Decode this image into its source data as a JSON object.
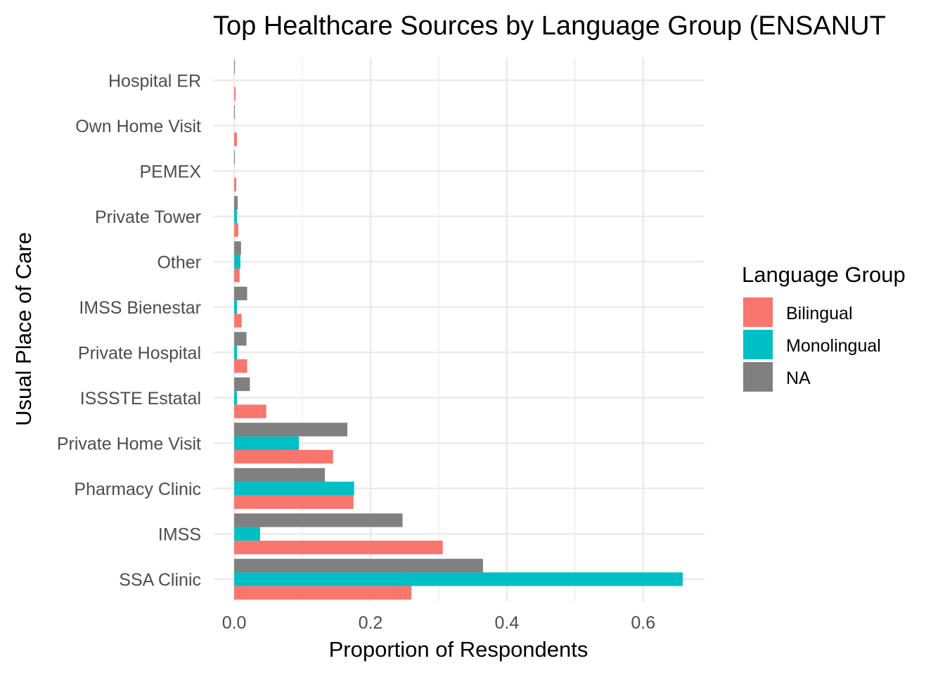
{
  "chart_data": {
    "type": "bar",
    "orientation": "horizontal",
    "title": "Top Healthcare Sources by Language Group (ENSANUT",
    "xlabel": "Proportion of Respondents",
    "ylabel": "Usual Place of Care",
    "xlim": [
      -0.03,
      0.69
    ],
    "xticks": [
      0.0,
      0.2,
      0.4,
      0.6
    ],
    "xtick_labels": [
      "0.0",
      "0.2",
      "0.4",
      "0.6"
    ],
    "grid": true,
    "legend": {
      "title": "Language Group",
      "position": "right"
    },
    "categories": [
      "Hospital ER",
      "Own Home Visit",
      "PEMEX",
      "Private Tower",
      "Other",
      "IMSS Bienestar",
      "Private Hospital",
      "ISSSTE Estatal",
      "Private Home Visit",
      "Pharmacy Clinic",
      "IMSS",
      "SSA Clinic"
    ],
    "series": [
      {
        "name": "Bilingual",
        "color": "#F8766D",
        "values": [
          0.002,
          0.004,
          0.003,
          0.006,
          0.008,
          0.011,
          0.019,
          0.047,
          0.145,
          0.175,
          0.306,
          0.26
        ]
      },
      {
        "name": "Monolingual",
        "color": "#00BFC4",
        "values": [
          0,
          0,
          0,
          0.004,
          0.009,
          0.004,
          0.004,
          0.004,
          0.095,
          0.176,
          0.038,
          0.658
        ]
      },
      {
        "name": "NA",
        "color": "#808080",
        "values": [
          0.001,
          0.001,
          0.001,
          0.005,
          0.01,
          0.019,
          0.018,
          0.023,
          0.166,
          0.133,
          0.247,
          0.365
        ]
      }
    ]
  }
}
